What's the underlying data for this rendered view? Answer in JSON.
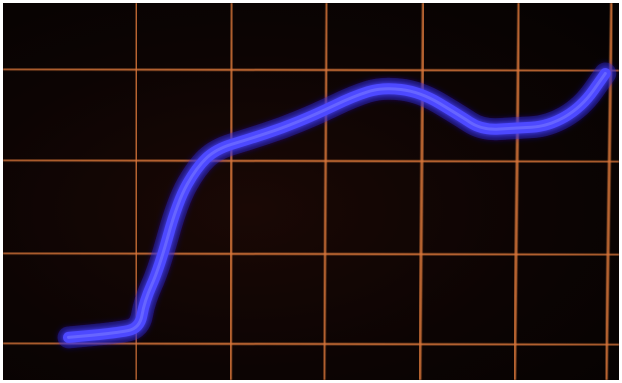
{
  "scope": {
    "screen_color": "#0c0403",
    "graticule_color": "#d8753a",
    "trace_color": "#4d48ff",
    "trace_glow_color": "#2a22d8",
    "divisions": {
      "horizontal": 6,
      "vertical": 4
    },
    "trace_points": [
      [
        -2.7,
        -1.95
      ],
      [
        -2.2,
        -1.9
      ],
      [
        -1.95,
        -1.85
      ],
      [
        -1.9,
        -1.55
      ],
      [
        -1.75,
        -1.2
      ],
      [
        -1.55,
        -0.45
      ],
      [
        -1.35,
        -0.08
      ],
      [
        -1.15,
        0.12
      ],
      [
        -0.8,
        0.23
      ],
      [
        -0.45,
        0.35
      ],
      [
        -0.1,
        0.5
      ],
      [
        0.3,
        0.7
      ],
      [
        0.6,
        0.8
      ],
      [
        1.0,
        0.75
      ],
      [
        1.4,
        0.5
      ],
      [
        1.65,
        0.33
      ],
      [
        2.0,
        0.35
      ],
      [
        2.35,
        0.37
      ],
      [
        2.7,
        0.58
      ],
      [
        2.95,
        0.95
      ]
    ]
  }
}
